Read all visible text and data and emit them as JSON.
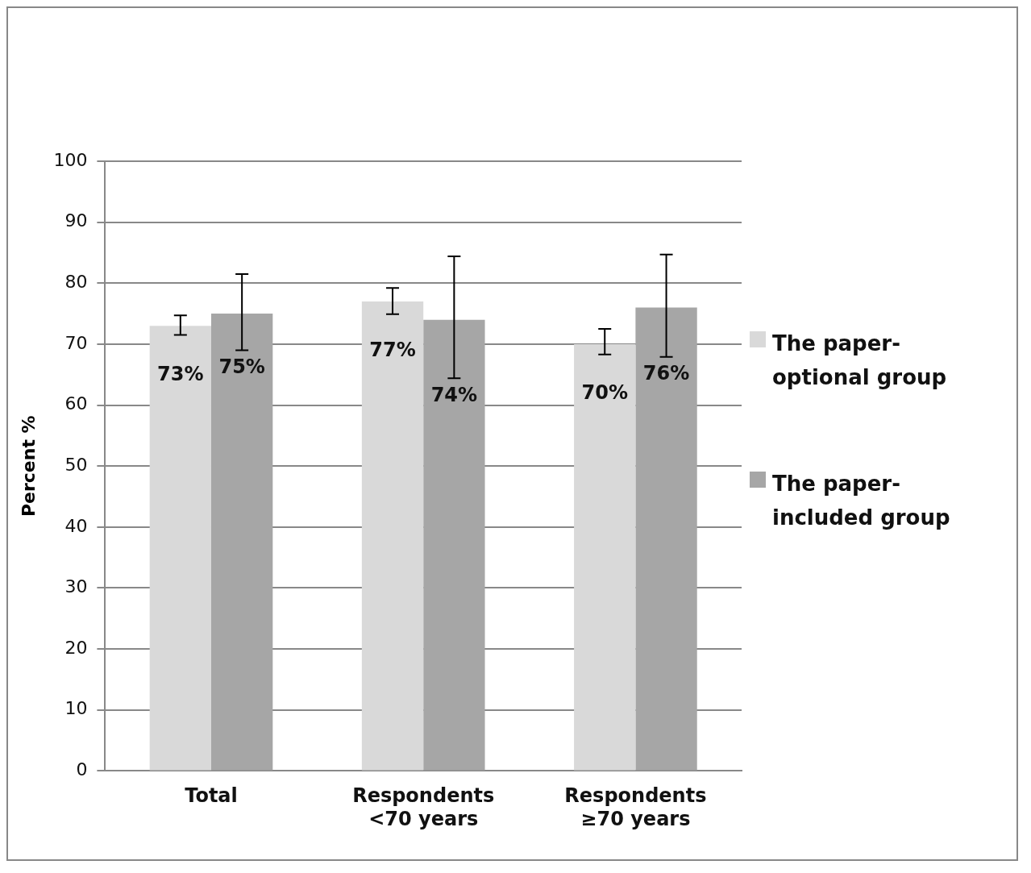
{
  "chart_data": {
    "type": "bar",
    "ylabel": "Percent %",
    "categories": [
      "Total",
      "Respondents <70 years",
      "Respondents ≥70 years"
    ],
    "series": [
      {
        "name": "The paper-optional group",
        "color": "#d9d9d9",
        "values": [
          73,
          77,
          70
        ],
        "value_labels": [
          "73%",
          "77%",
          "70%"
        ],
        "errors": [
          [
            71.5,
            74.7
          ],
          [
            74.9,
            79.2
          ],
          [
            68.3,
            72.5
          ]
        ]
      },
      {
        "name": "The paper-included group",
        "color": "#a6a6a6",
        "values": [
          75,
          74,
          76
        ],
        "value_labels": [
          "75%",
          "74%",
          "76%"
        ],
        "errors": [
          [
            69,
            81.5
          ],
          [
            64.4,
            84.4
          ],
          [
            67.9,
            84.7
          ]
        ]
      }
    ],
    "ylim": [
      0,
      100
    ],
    "yticks": [
      0,
      10,
      20,
      30,
      40,
      50,
      60,
      70,
      80,
      90,
      100
    ],
    "grid": "y",
    "legend": "right"
  }
}
